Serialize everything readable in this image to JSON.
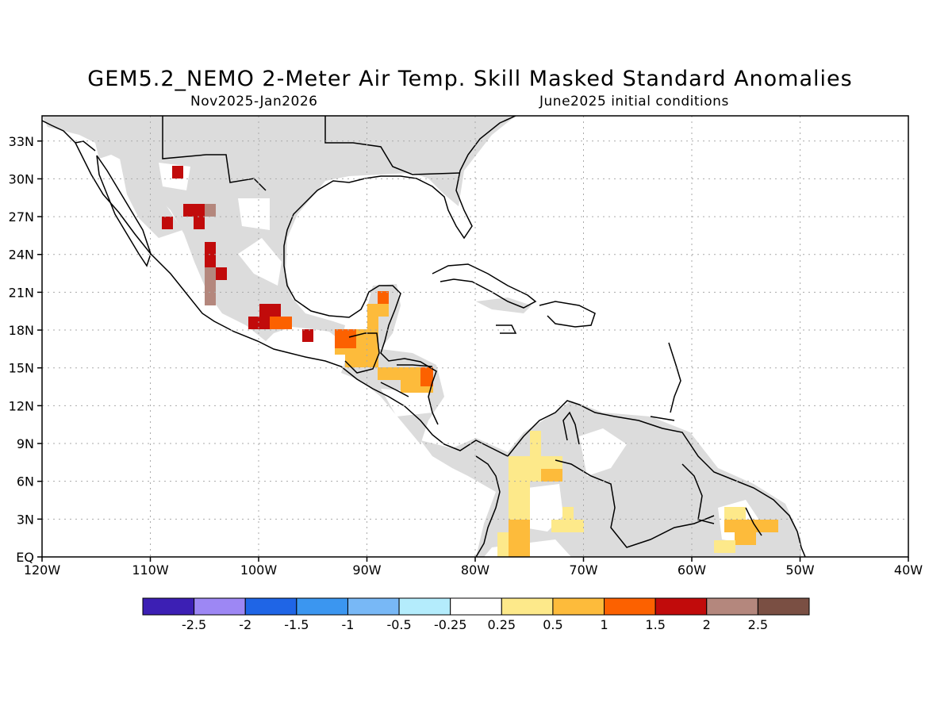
{
  "title": "GEM5.2_NEMO 2-Meter Air Temp. Skill Masked Standard Anomalies",
  "period": "Nov2025-Jan2026",
  "init": "June2025 initial conditions",
  "lat_labels": [
    "33N",
    "30N",
    "27N",
    "24N",
    "21N",
    "18N",
    "15N",
    "12N",
    "9N",
    "6N",
    "3N",
    "EQ"
  ],
  "lat_values": [
    33,
    30,
    27,
    24,
    21,
    18,
    15,
    12,
    9,
    6,
    3,
    0
  ],
  "lon_labels": [
    "120W",
    "110W",
    "100W",
    "90W",
    "80W",
    "70W",
    "60W",
    "50W",
    "40W"
  ],
  "lon_values": [
    -120,
    -110,
    -100,
    -90,
    -80,
    -70,
    -60,
    -50,
    -40
  ],
  "colorbar": {
    "colors": [
      "#3c1fb4",
      "#9d87f4",
      "#1f65e6",
      "#3b96f0",
      "#78b8f6",
      "#b4ecfc",
      "#ffffff",
      "#fde98a",
      "#fdbb3b",
      "#fc6100",
      "#c10b0b",
      "#b4877d",
      "#7a4f43"
    ],
    "labels": [
      "-2.5",
      "-2",
      "-1.5",
      "-1",
      "-0.5",
      "-0.25",
      "0.25",
      "0.5",
      "1",
      "1.5",
      "2",
      "2.5"
    ]
  },
  "colors": {
    "land_mask": "#dcdcdc",
    "coast": "#000000"
  }
}
